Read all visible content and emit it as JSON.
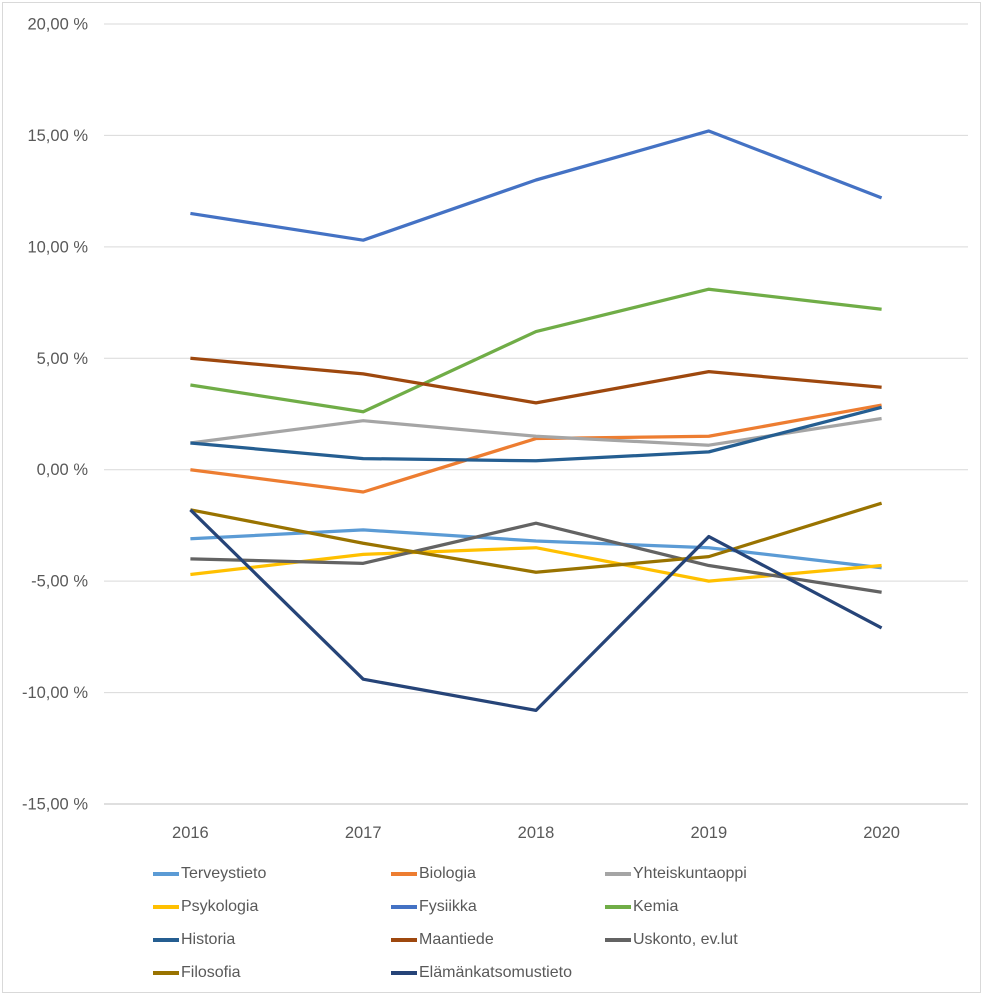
{
  "chart_data": {
    "type": "line",
    "title": "",
    "xlabel": "",
    "ylabel": "",
    "categories": [
      "2016",
      "2017",
      "2018",
      "2019",
      "2020"
    ],
    "series": [
      {
        "name": "Terveystieto",
        "color": "#5B9BD5",
        "values": [
          -3.1,
          -2.7,
          -3.2,
          -3.5,
          -4.4
        ]
      },
      {
        "name": "Biologia",
        "color": "#ED7D31",
        "values": [
          0.0,
          -1.0,
          1.4,
          1.5,
          2.9
        ]
      },
      {
        "name": "Yhteiskuntaoppi",
        "color": "#A5A5A5",
        "values": [
          1.2,
          2.2,
          1.5,
          1.1,
          2.3
        ]
      },
      {
        "name": "Psykologia",
        "color": "#FFC000",
        "values": [
          -4.7,
          -3.8,
          -3.5,
          -5.0,
          -4.3
        ]
      },
      {
        "name": "Fysiikka",
        "color": "#4472C4",
        "values": [
          11.5,
          10.3,
          13.0,
          15.2,
          12.2
        ]
      },
      {
        "name": "Kemia",
        "color": "#70AD47",
        "values": [
          3.8,
          2.6,
          6.2,
          8.1,
          7.2
        ]
      },
      {
        "name": "Historia",
        "color": "#255E91",
        "values": [
          1.2,
          0.5,
          0.4,
          0.8,
          2.8
        ]
      },
      {
        "name": "Maantiede",
        "color": "#9E480E",
        "values": [
          5.0,
          4.3,
          3.0,
          4.4,
          3.7
        ]
      },
      {
        "name": "Uskonto, ev.lut",
        "color": "#636363",
        "values": [
          -4.0,
          -4.2,
          -2.4,
          -4.3,
          -5.5
        ]
      },
      {
        "name": "Filosofia",
        "color": "#997300",
        "values": [
          -1.8,
          -3.3,
          -4.6,
          -3.9,
          -1.5
        ]
      },
      {
        "name": "Elämänkatsomustieto",
        "color": "#264478",
        "values": [
          -1.8,
          -9.4,
          -10.8,
          -3.0,
          -7.1
        ]
      }
    ],
    "ylim": [
      -15,
      20
    ],
    "yticks": [
      20,
      15,
      10,
      5,
      0,
      -5,
      -10,
      -15
    ],
    "ytick_labels": [
      "20,00 %",
      "15,00 %",
      "10,00 %",
      "5,00 %",
      "0,00 %",
      "-5,00 %",
      "-10,00 %",
      "-15,00 %"
    ],
    "grid": true,
    "legend_position": "bottom",
    "legend_columns": 3,
    "colors": {
      "background": "#FFFFFF",
      "gridline": "#D9D9D9",
      "axis_line": "#BFBFBF",
      "tick_text": "#595959",
      "legend_text": "#595959",
      "frame_border": "#D9D9D9"
    }
  }
}
